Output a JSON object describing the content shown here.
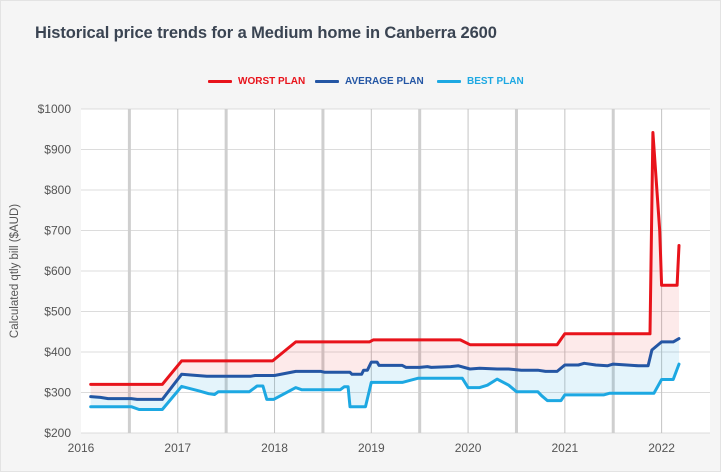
{
  "title": "Historical price trends for a Medium home in Canberra 2600",
  "chart_data": {
    "type": "line",
    "title": "Historical price trends for a Medium home in Canberra 2600",
    "xlabel": "",
    "ylabel": "Calculated qtly bill ($AUD)",
    "xlim": [
      2016,
      2022.5
    ],
    "ylim": [
      200,
      1000
    ],
    "y_ticks": [
      200,
      300,
      400,
      500,
      600,
      700,
      800,
      900,
      1000
    ],
    "y_tick_labels": [
      "$200",
      "$300",
      "$400",
      "$500",
      "$600",
      "$700",
      "$800",
      "$900",
      "$1000"
    ],
    "x_ticks": [
      2016,
      2017,
      2018,
      2019,
      2020,
      2021,
      2022
    ],
    "x_tick_labels": [
      "2016",
      "2017",
      "2018",
      "2019",
      "2020",
      "2021",
      "2022"
    ],
    "grid": true,
    "legend_position": "top-center",
    "series": [
      {
        "name": "WORST PLAN",
        "color": "#e8131b",
        "points": [
          [
            2016.1,
            320
          ],
          [
            2016.84,
            320
          ],
          [
            2017.04,
            378
          ],
          [
            2017.98,
            378
          ],
          [
            2018.22,
            425
          ],
          [
            2018.98,
            425
          ],
          [
            2019.02,
            430
          ],
          [
            2019.92,
            430
          ],
          [
            2020.02,
            418
          ],
          [
            2020.92,
            418
          ],
          [
            2021.0,
            445
          ],
          [
            2021.88,
            445
          ],
          [
            2021.91,
            942
          ],
          [
            2021.98,
            700
          ],
          [
            2022.0,
            565
          ],
          [
            2022.16,
            565
          ],
          [
            2022.18,
            663
          ]
        ]
      },
      {
        "name": "AVERAGE PLAN",
        "color": "#2456a4",
        "points": [
          [
            2016.1,
            290
          ],
          [
            2016.2,
            288
          ],
          [
            2016.28,
            285
          ],
          [
            2016.52,
            285
          ],
          [
            2016.58,
            283
          ],
          [
            2016.84,
            283
          ],
          [
            2017.04,
            345
          ],
          [
            2017.15,
            343
          ],
          [
            2017.3,
            340
          ],
          [
            2017.5,
            340
          ],
          [
            2017.75,
            340
          ],
          [
            2017.8,
            342
          ],
          [
            2018.0,
            342
          ],
          [
            2018.22,
            352
          ],
          [
            2018.48,
            352
          ],
          [
            2018.52,
            350
          ],
          [
            2018.78,
            350
          ],
          [
            2018.8,
            345
          ],
          [
            2018.9,
            345
          ],
          [
            2018.92,
            355
          ],
          [
            2018.96,
            355
          ],
          [
            2019.0,
            375
          ],
          [
            2019.06,
            375
          ],
          [
            2019.08,
            367
          ],
          [
            2019.32,
            367
          ],
          [
            2019.36,
            362
          ],
          [
            2019.5,
            362
          ],
          [
            2019.58,
            364
          ],
          [
            2019.62,
            362
          ],
          [
            2019.82,
            364
          ],
          [
            2019.9,
            366
          ],
          [
            2020.02,
            358
          ],
          [
            2020.12,
            360
          ],
          [
            2020.3,
            358
          ],
          [
            2020.42,
            358
          ],
          [
            2020.55,
            355
          ],
          [
            2020.72,
            355
          ],
          [
            2020.8,
            352
          ],
          [
            2020.92,
            352
          ],
          [
            2021.0,
            368
          ],
          [
            2021.14,
            368
          ],
          [
            2021.2,
            372
          ],
          [
            2021.32,
            368
          ],
          [
            2021.44,
            366
          ],
          [
            2021.5,
            370
          ],
          [
            2021.64,
            368
          ],
          [
            2021.76,
            366
          ],
          [
            2021.86,
            366
          ],
          [
            2021.9,
            405
          ],
          [
            2022.0,
            425
          ],
          [
            2022.06,
            425
          ],
          [
            2022.12,
            425
          ],
          [
            2022.18,
            433
          ]
        ]
      },
      {
        "name": "BEST PLAN",
        "color": "#1da8e2",
        "points": [
          [
            2016.1,
            265
          ],
          [
            2016.52,
            265
          ],
          [
            2016.6,
            258
          ],
          [
            2016.84,
            258
          ],
          [
            2017.04,
            315
          ],
          [
            2017.12,
            310
          ],
          [
            2017.22,
            304
          ],
          [
            2017.32,
            297
          ],
          [
            2017.38,
            295
          ],
          [
            2017.42,
            302
          ],
          [
            2017.74,
            302
          ],
          [
            2017.82,
            316
          ],
          [
            2017.88,
            316
          ],
          [
            2017.92,
            283
          ],
          [
            2017.99,
            283
          ],
          [
            2018.22,
            312
          ],
          [
            2018.28,
            307
          ],
          [
            2018.68,
            307
          ],
          [
            2018.72,
            314
          ],
          [
            2018.76,
            314
          ],
          [
            2018.78,
            265
          ],
          [
            2018.94,
            265
          ],
          [
            2019.0,
            325
          ],
          [
            2019.32,
            325
          ],
          [
            2019.48,
            335
          ],
          [
            2019.94,
            335
          ],
          [
            2020.0,
            312
          ],
          [
            2020.12,
            312
          ],
          [
            2020.2,
            318
          ],
          [
            2020.3,
            333
          ],
          [
            2020.42,
            318
          ],
          [
            2020.5,
            302
          ],
          [
            2020.72,
            302
          ],
          [
            2020.76,
            292
          ],
          [
            2020.82,
            280
          ],
          [
            2020.96,
            280
          ],
          [
            2021.0,
            294
          ],
          [
            2021.4,
            294
          ],
          [
            2021.46,
            298
          ],
          [
            2021.92,
            298
          ],
          [
            2022.0,
            332
          ],
          [
            2022.12,
            332
          ],
          [
            2022.18,
            370
          ]
        ]
      }
    ]
  }
}
